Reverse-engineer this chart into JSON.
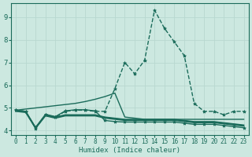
{
  "xlabel": "Humidex (Indice chaleur)",
  "bg_color": "#cce8e0",
  "line_color": "#1a6b5a",
  "grid_color": "#b8d8d0",
  "xlim": [
    -0.5,
    23.5
  ],
  "ylim": [
    3.8,
    9.6
  ],
  "xticks": [
    0,
    1,
    2,
    3,
    4,
    5,
    6,
    7,
    8,
    9,
    10,
    11,
    12,
    13,
    14,
    15,
    16,
    17,
    18,
    19,
    20,
    21,
    22,
    23
  ],
  "yticks": [
    4,
    5,
    6,
    7,
    8,
    9
  ],
  "lines": [
    {
      "x": [
        0,
        1,
        2,
        3,
        4,
        5,
        6,
        7,
        8,
        9,
        10,
        11,
        12,
        13,
        14,
        15,
        16,
        17,
        18,
        19,
        20,
        21,
        22,
        23
      ],
      "y": [
        4.9,
        4.85,
        4.1,
        4.7,
        4.6,
        4.85,
        4.9,
        4.9,
        4.85,
        4.85,
        5.85,
        7.0,
        6.5,
        7.1,
        9.3,
        8.5,
        7.9,
        7.3,
        5.2,
        4.85,
        4.85,
        4.7,
        4.85,
        4.85
      ],
      "marker": "*",
      "lw": 1.0,
      "dashed": true
    },
    {
      "x": [
        0,
        1,
        2,
        3,
        4,
        5,
        6,
        7,
        8,
        9,
        10,
        11,
        12,
        13,
        14,
        15,
        16,
        17,
        18,
        19,
        20,
        21,
        22,
        23
      ],
      "y": [
        4.9,
        4.95,
        5.0,
        5.05,
        5.1,
        5.15,
        5.2,
        5.28,
        5.38,
        5.5,
        5.65,
        4.6,
        4.55,
        4.5,
        4.5,
        4.5,
        4.5,
        4.5,
        4.5,
        4.5,
        4.5,
        4.5,
        4.5,
        4.5
      ],
      "marker": null,
      "lw": 1.0,
      "dashed": false
    },
    {
      "x": [
        0,
        1,
        2,
        3,
        4,
        5,
        6,
        7,
        8,
        9,
        10,
        11,
        12,
        13,
        14,
        15,
        16,
        17,
        18,
        19,
        20,
        21,
        22,
        23
      ],
      "y": [
        4.85,
        4.8,
        4.1,
        4.65,
        4.55,
        4.65,
        4.65,
        4.65,
        4.65,
        4.55,
        4.5,
        4.45,
        4.45,
        4.45,
        4.45,
        4.45,
        4.45,
        4.4,
        4.35,
        4.35,
        4.35,
        4.3,
        4.25,
        4.2
      ],
      "marker": null,
      "lw": 1.0,
      "dashed": false
    },
    {
      "x": [
        0,
        1,
        2,
        3,
        4,
        5,
        6,
        7,
        8,
        9,
        10,
        11,
        12,
        13,
        14,
        15,
        16,
        17,
        18,
        19,
        20,
        21,
        22,
        23
      ],
      "y": [
        4.88,
        4.83,
        4.12,
        4.68,
        4.58,
        4.68,
        4.68,
        4.68,
        4.68,
        4.58,
        4.53,
        4.48,
        4.48,
        4.48,
        4.48,
        4.48,
        4.48,
        4.43,
        4.38,
        4.38,
        4.38,
        4.33,
        4.28,
        4.23
      ],
      "marker": null,
      "lw": 1.0,
      "dashed": false
    },
    {
      "x": [
        0,
        1,
        2,
        3,
        4,
        5,
        6,
        7,
        8,
        9,
        10,
        11,
        12,
        13,
        14,
        15,
        16,
        17,
        18,
        19,
        20,
        21,
        22,
        23
      ],
      "y": [
        4.9,
        4.85,
        4.15,
        4.72,
        4.62,
        4.87,
        4.92,
        4.92,
        4.87,
        4.45,
        4.4,
        4.38,
        4.38,
        4.38,
        4.38,
        4.38,
        4.38,
        4.33,
        4.28,
        4.28,
        4.28,
        4.23,
        4.18,
        4.13
      ],
      "marker": "*",
      "lw": 1.0,
      "dashed": false
    },
    {
      "x": [
        0,
        1,
        2,
        3,
        4,
        5,
        6,
        7,
        8,
        9,
        10,
        11,
        12,
        13,
        14,
        15,
        16,
        17,
        18,
        19,
        20,
        21,
        22,
        23
      ],
      "y": [
        4.9,
        4.85,
        4.12,
        4.7,
        4.6,
        4.7,
        4.7,
        4.7,
        4.7,
        4.6,
        4.55,
        4.5,
        4.5,
        4.5,
        4.5,
        4.5,
        4.5,
        4.45,
        4.4,
        4.4,
        4.4,
        4.35,
        4.3,
        4.25
      ],
      "marker": null,
      "lw": 1.0,
      "dashed": false
    }
  ]
}
